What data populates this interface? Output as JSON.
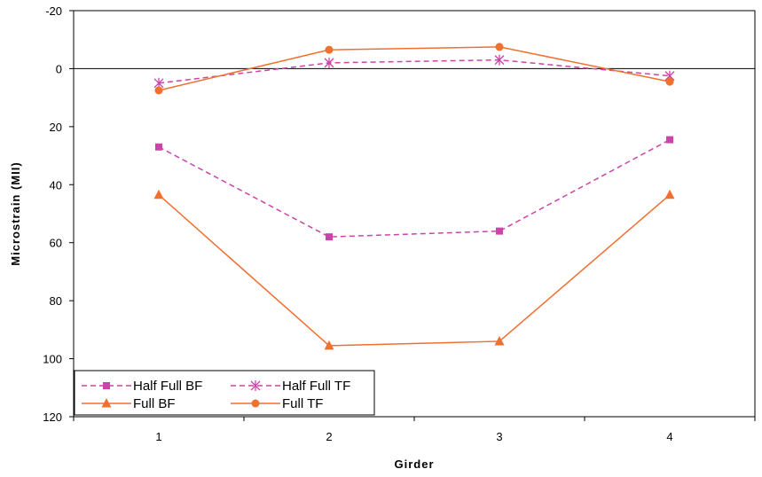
{
  "chart_data": {
    "type": "line",
    "xlabel": "Girder",
    "ylabel": "Microstrain (MII)",
    "categories": [
      "1",
      "2",
      "3",
      "4"
    ],
    "ylim": [
      -20,
      120
    ],
    "y_inverted": true,
    "y_ticks": [
      "-20",
      "0",
      "20",
      "40",
      "60",
      "80",
      "100",
      "120"
    ],
    "grid": false,
    "zero_line": true,
    "legend_position": "bottom-left",
    "series": [
      {
        "name": "Half Full BF",
        "values": [
          27,
          58,
          56,
          24.5
        ],
        "color": "#cc44aa",
        "dash": "dashed",
        "marker": "square"
      },
      {
        "name": "Half Full TF",
        "values": [
          5,
          -2,
          -3,
          2.5
        ],
        "color": "#cc44aa",
        "dash": "dashed",
        "marker": "asterisk"
      },
      {
        "name": "Full BF",
        "values": [
          43.5,
          95.5,
          94,
          43.5
        ],
        "color": "#f07030",
        "dash": "solid",
        "marker": "triangle"
      },
      {
        "name": "Full TF",
        "values": [
          7.5,
          -6.5,
          -7.5,
          4.5
        ],
        "color": "#f07030",
        "dash": "solid",
        "marker": "circle"
      }
    ]
  }
}
